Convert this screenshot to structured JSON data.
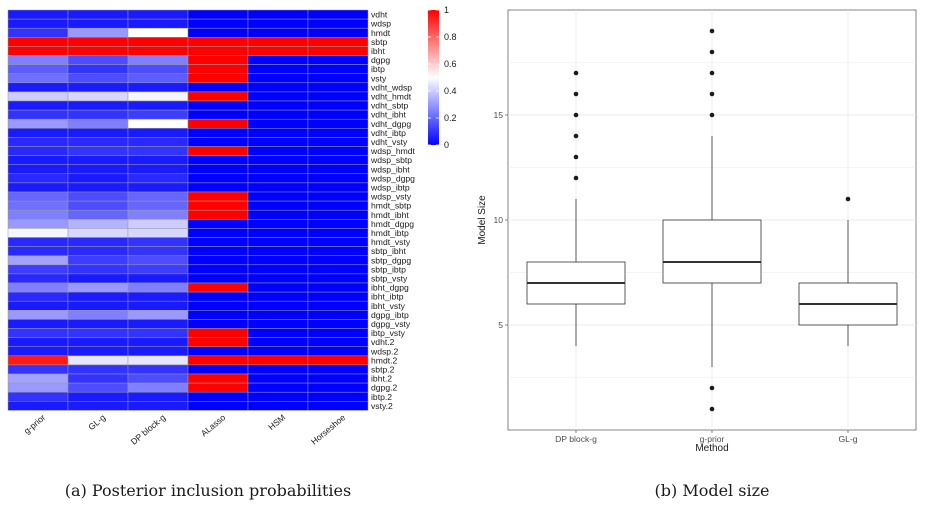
{
  "captions": {
    "heatmap": "(a) Posterior inclusion probabilities",
    "boxplot": "(b) Model size"
  },
  "colors": {
    "low": "#0000FF",
    "mid": "#FFFFFF",
    "high": "#FF0000",
    "cell_border": "#9a9a9a",
    "box_fill": "#ffffff",
    "box_stroke": "#333333",
    "grid": "#ebebeb"
  },
  "chart_data": [
    {
      "type": "heatmap",
      "title": "",
      "columns": [
        "g-prior",
        "GL-g",
        "DP block-g",
        "ALasso",
        "HSM",
        "Horseshoe"
      ],
      "rows": [
        "vdht",
        "wdsp",
        "hmdt",
        "sbtp",
        "ibht",
        "dgpg",
        "ibtp",
        "vsty",
        "vdht_wdsp",
        "vdht_hmdt",
        "vdht_sbtp",
        "vdht_ibht",
        "vdht_dgpg",
        "vdht_ibtp",
        "vdht_vsty",
        "wdsp_hmdt",
        "wdsp_sbtp",
        "wdsp_ibht",
        "wdsp_dgpg",
        "wdsp_ibtp",
        "wdsp_vsty",
        "hmdt_sbtp",
        "hmdt_ibht",
        "hmdt_dgpg",
        "hmdt_ibtp",
        "hmdt_vsty",
        "sbtp_ibht",
        "sbtp_dgpg",
        "sbtp_ibtp",
        "sbtp_vsty",
        "ibht_dgpg",
        "ibht_ibtp",
        "ibht_vsty",
        "dgpg_ibtp",
        "dgpg_vsty",
        "ibtp_vsty",
        "vdht.2",
        "wdsp.2",
        "hmdt.2",
        "sbtp.2",
        "ibht.2",
        "dgpg.2",
        "ibtp.2",
        "vsty.2"
      ],
      "values": [
        [
          0.05,
          0.05,
          0.05,
          0.0,
          0.0,
          0.0
        ],
        [
          0.05,
          0.05,
          0.05,
          0.0,
          0.0,
          0.0
        ],
        [
          0.1,
          0.3,
          0.5,
          0.0,
          0.0,
          0.0
        ],
        [
          1.0,
          1.0,
          1.0,
          1.0,
          1.0,
          1.0
        ],
        [
          1.0,
          1.0,
          1.0,
          1.0,
          1.0,
          1.0
        ],
        [
          0.25,
          0.15,
          0.25,
          1.0,
          0.0,
          0.0
        ],
        [
          0.18,
          0.1,
          0.15,
          1.0,
          0.0,
          0.0
        ],
        [
          0.22,
          0.15,
          0.18,
          1.0,
          0.0,
          0.0
        ],
        [
          0.05,
          0.05,
          0.05,
          0.0,
          0.0,
          0.0
        ],
        [
          0.4,
          0.42,
          0.48,
          1.0,
          0.0,
          0.0
        ],
        [
          0.05,
          0.05,
          0.05,
          0.0,
          0.0,
          0.0
        ],
        [
          0.1,
          0.1,
          0.12,
          0.0,
          0.0,
          0.0
        ],
        [
          0.3,
          0.25,
          0.5,
          1.0,
          0.0,
          0.0
        ],
        [
          0.05,
          0.05,
          0.05,
          0.0,
          0.0,
          0.0
        ],
        [
          0.08,
          0.08,
          0.08,
          0.0,
          0.0,
          0.0
        ],
        [
          0.08,
          0.1,
          0.1,
          1.0,
          0.0,
          0.0
        ],
        [
          0.05,
          0.05,
          0.05,
          0.0,
          0.0,
          0.0
        ],
        [
          0.05,
          0.05,
          0.05,
          0.0,
          0.0,
          0.0
        ],
        [
          0.08,
          0.05,
          0.08,
          0.0,
          0.0,
          0.0
        ],
        [
          0.05,
          0.05,
          0.05,
          0.0,
          0.0,
          0.0
        ],
        [
          0.2,
          0.15,
          0.2,
          1.0,
          0.0,
          0.0
        ],
        [
          0.22,
          0.15,
          0.2,
          1.0,
          0.0,
          0.0
        ],
        [
          0.25,
          0.2,
          0.25,
          1.0,
          0.0,
          0.0
        ],
        [
          0.3,
          0.35,
          0.4,
          0.0,
          0.0,
          0.0
        ],
        [
          0.48,
          0.42,
          0.42,
          0.0,
          0.0,
          0.0
        ],
        [
          0.08,
          0.08,
          0.1,
          0.0,
          0.0,
          0.0
        ],
        [
          0.08,
          0.08,
          0.1,
          0.0,
          0.0,
          0.0
        ],
        [
          0.32,
          0.12,
          0.15,
          0.0,
          0.0,
          0.0
        ],
        [
          0.12,
          0.1,
          0.12,
          0.0,
          0.0,
          0.0
        ],
        [
          0.08,
          0.05,
          0.05,
          0.0,
          0.0,
          0.0
        ],
        [
          0.25,
          0.3,
          0.25,
          1.0,
          0.0,
          0.0
        ],
        [
          0.08,
          0.05,
          0.05,
          0.0,
          0.0,
          0.0
        ],
        [
          0.05,
          0.05,
          0.05,
          0.0,
          0.0,
          0.0
        ],
        [
          0.3,
          0.25,
          0.3,
          0.0,
          0.0,
          0.0
        ],
        [
          0.05,
          0.05,
          0.05,
          0.0,
          0.0,
          0.0
        ],
        [
          0.1,
          0.1,
          0.1,
          1.0,
          0.0,
          0.0
        ],
        [
          0.05,
          0.05,
          0.05,
          1.0,
          0.0,
          0.0
        ],
        [
          0.05,
          0.05,
          0.05,
          0.0,
          0.0,
          0.0
        ],
        [
          0.95,
          0.45,
          0.45,
          1.0,
          1.0,
          1.0
        ],
        [
          0.1,
          0.1,
          0.1,
          0.0,
          0.0,
          0.0
        ],
        [
          0.32,
          0.1,
          0.15,
          1.0,
          0.0,
          0.0
        ],
        [
          0.3,
          0.15,
          0.25,
          1.0,
          0.0,
          0.0
        ],
        [
          0.1,
          0.05,
          0.05,
          0.0,
          0.0,
          0.0
        ],
        [
          0.05,
          0.05,
          0.05,
          0.0,
          0.0,
          0.0
        ]
      ],
      "legend": {
        "position": "right",
        "range": [
          0,
          1
        ],
        "ticks": [
          "0",
          "0.2",
          "0.4",
          "0.6",
          "0.8",
          "1"
        ]
      }
    },
    {
      "type": "boxplot",
      "title": "",
      "xlabel": "Method",
      "ylabel": "Model Size",
      "ylim": [
        0,
        20
      ],
      "yticks": [
        5,
        10,
        15
      ],
      "grid": true,
      "categories": [
        "DP block-g",
        "g-prior",
        "GL-g"
      ],
      "boxes": [
        {
          "category": "DP block-g",
          "lower_whisker": 4,
          "q1": 6,
          "median": 7,
          "q3": 8,
          "upper_whisker": 11,
          "outliers": [
            12,
            13,
            14,
            15,
            16,
            17
          ]
        },
        {
          "category": "g-prior",
          "lower_whisker": 3,
          "q1": 7,
          "median": 8,
          "q3": 10,
          "upper_whisker": 14,
          "outliers": [
            1,
            2,
            15,
            16,
            17,
            18,
            19
          ]
        },
        {
          "category": "GL-g",
          "lower_whisker": 4,
          "q1": 5,
          "median": 6,
          "q3": 7,
          "upper_whisker": 10,
          "outliers": [
            11
          ]
        }
      ]
    }
  ]
}
